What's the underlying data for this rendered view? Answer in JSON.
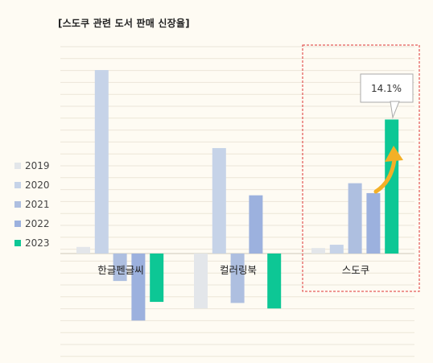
{
  "chart_data": {
    "type": "bar",
    "title": "[스도쿠 관련 도서 판매 신장율]",
    "categories": [
      "한글펜글씨",
      "컬러링북",
      "스도쿠"
    ],
    "series": [
      {
        "name": "2019",
        "color": "#e3e6ea",
        "values": [
          6,
          -50,
          5
        ]
      },
      {
        "name": "2020",
        "color": "#c6d3e8",
        "values": [
          167,
          96,
          8
        ]
      },
      {
        "name": "2021",
        "color": "#aebfe0",
        "values": [
          -25,
          -45,
          64
        ]
      },
      {
        "name": "2022",
        "color": "#9cb1de",
        "values": [
          -61,
          53,
          55
        ]
      },
      {
        "name": "2023",
        "color": "#0dc795",
        "values": [
          -44,
          -50,
          122
        ]
      }
    ],
    "highlight": {
      "category": "스도쿠",
      "label": "14.1%"
    },
    "ylim": [
      -95,
      188
    ],
    "grid": true,
    "legend_position": "left"
  }
}
